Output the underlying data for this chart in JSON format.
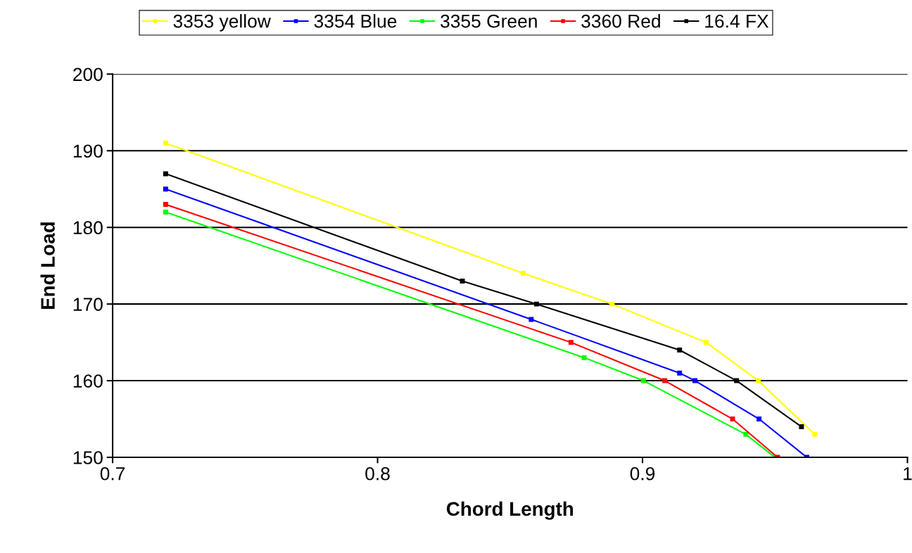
{
  "chart_data": {
    "type": "line",
    "xlabel": "Chord Length",
    "ylabel": "End Load",
    "xlim": [
      0.7,
      1
    ],
    "xticks": [
      0.7,
      0.8,
      0.9,
      {
        "value": 1,
        "label": "1"
      }
    ],
    "ylim": [
      150,
      200
    ],
    "yticks": [
      150,
      160,
      170,
      180,
      190,
      200
    ],
    "grid": "y",
    "legend": "top",
    "marker": "square",
    "line_style": "solid",
    "series": [
      {
        "name": "3353 yellow",
        "color": "#ffff00",
        "x": [
          0.72,
          0.855,
          0.8885,
          0.924,
          0.9437,
          0.965
        ],
        "values": [
          191,
          174,
          170,
          165,
          160,
          153
        ]
      },
      {
        "name": "3354 Blue",
        "color": "#0000ff",
        "x": [
          0.72,
          0.858,
          0.914,
          0.9198,
          0.944,
          0.962
        ],
        "values": [
          185,
          168,
          161,
          160,
          155,
          150
        ]
      },
      {
        "name": "3355 Green",
        "color": "#00ff00",
        "x": [
          0.72,
          0.878,
          0.9004,
          0.939,
          0.95
        ],
        "values": [
          182,
          163,
          160,
          153,
          150
        ]
      },
      {
        "name": "3360 Red",
        "color": "#ff0000",
        "x": [
          0.72,
          0.873,
          0.9084,
          0.934,
          0.951
        ],
        "values": [
          183,
          165,
          160,
          155,
          150
        ]
      },
      {
        "name": "16.4 FX",
        "color": "#000000",
        "x": [
          0.72,
          0.832,
          0.86,
          0.914,
          0.9355,
          0.96
        ],
        "values": [
          187,
          173,
          170,
          164,
          160,
          154
        ]
      }
    ]
  }
}
